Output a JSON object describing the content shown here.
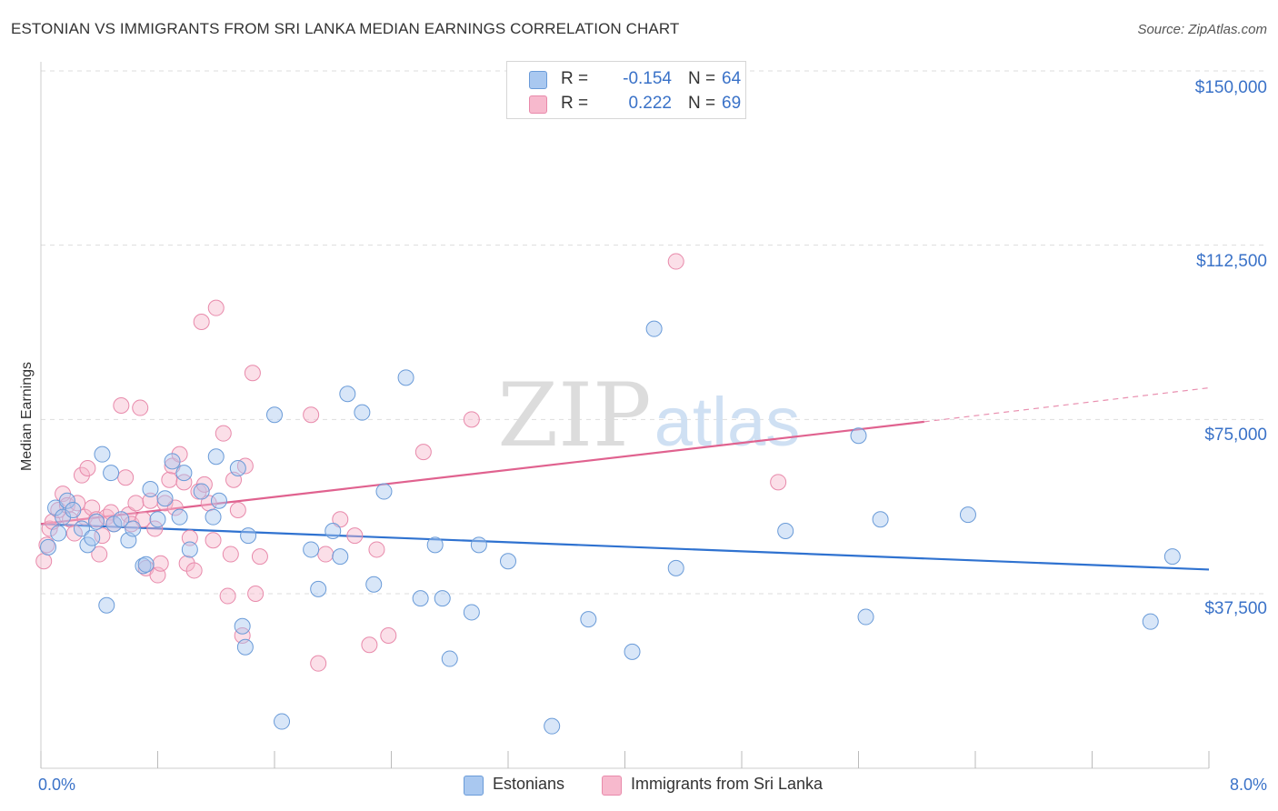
{
  "header": {
    "title": "ESTONIAN VS IMMIGRANTS FROM SRI LANKA MEDIAN EARNINGS CORRELATION CHART",
    "source": "Source: ZipAtlas.com"
  },
  "watermark": {
    "zip": "ZIP",
    "atlas": "atlas"
  },
  "legend": {
    "items": [
      {
        "r_label": "R =",
        "r_value": "-0.154",
        "n_label": "N =",
        "n_value": "64",
        "color": "#a9c8f0"
      },
      {
        "r_label": "R =",
        "r_value": "0.222",
        "n_label": "N =",
        "n_value": "69",
        "color": "#f7b9cd"
      }
    ]
  },
  "bottom_legend": {
    "estonians": "Estonians",
    "sri_lanka": "Immigrants from Sri Lanka"
  },
  "colors": {
    "blue_fill": "#a9c8f0",
    "blue_stroke": "#6a9bd8",
    "blue_line": "#2f72d0",
    "pink_fill": "#f7b9cd",
    "pink_stroke": "#e88aab",
    "pink_line": "#e0628f",
    "tick_text": "#3a72c8",
    "grid": "#dddddd"
  },
  "chart_data": {
    "type": "scatter",
    "title": "ESTONIAN VS IMMIGRANTS FROM SRI LANKA MEDIAN EARNINGS CORRELATION CHART",
    "xlabel": "",
    "ylabel": "Median Earnings",
    "xlim": [
      0,
      8
    ],
    "ylim": [
      0,
      157500
    ],
    "x_tick_labels": [
      "0.0%",
      "8.0%"
    ],
    "y_ticks": [
      37500,
      75000,
      112500,
      150000
    ],
    "y_tick_labels": [
      "$37,500",
      "$75,000",
      "$112,500",
      "$150,000"
    ],
    "grid": true,
    "series": [
      {
        "name": "Estonians",
        "r": -0.154,
        "n": 64,
        "trend": {
          "x": [
            0,
            8
          ],
          "y": [
            52500,
            42700
          ]
        },
        "points": [
          [
            0.05,
            47500
          ],
          [
            0.1,
            56000
          ],
          [
            0.15,
            54000
          ],
          [
            0.18,
            57500
          ],
          [
            0.22,
            55500
          ],
          [
            0.28,
            51500
          ],
          [
            0.32,
            48000
          ],
          [
            0.35,
            49500
          ],
          [
            0.38,
            53000
          ],
          [
            0.42,
            67500
          ],
          [
            0.48,
            63500
          ],
          [
            0.5,
            52500
          ],
          [
            0.55,
            53500
          ],
          [
            0.6,
            49000
          ],
          [
            0.63,
            51500
          ],
          [
            0.7,
            43500
          ],
          [
            0.75,
            60000
          ],
          [
            0.8,
            53500
          ],
          [
            0.85,
            58000
          ],
          [
            0.9,
            66000
          ],
          [
            0.95,
            54000
          ],
          [
            0.98,
            63500
          ],
          [
            1.02,
            47000
          ],
          [
            1.1,
            59500
          ],
          [
            1.18,
            54000
          ],
          [
            1.2,
            67000
          ],
          [
            1.22,
            57500
          ],
          [
            1.35,
            64500
          ],
          [
            1.38,
            30500
          ],
          [
            1.42,
            50000
          ],
          [
            1.6,
            76000
          ],
          [
            1.85,
            47000
          ],
          [
            1.9,
            38500
          ],
          [
            2.0,
            51000
          ],
          [
            2.05,
            45500
          ],
          [
            2.1,
            80500
          ],
          [
            2.2,
            76500
          ],
          [
            2.28,
            39500
          ],
          [
            2.35,
            59500
          ],
          [
            2.5,
            84000
          ],
          [
            2.6,
            36500
          ],
          [
            2.7,
            48000
          ],
          [
            2.75,
            36500
          ],
          [
            2.8,
            23500
          ],
          [
            2.95,
            33500
          ],
          [
            3.0,
            48000
          ],
          [
            3.2,
            44500
          ],
          [
            3.5,
            9000
          ],
          [
            3.75,
            32000
          ],
          [
            4.05,
            25000
          ],
          [
            4.2,
            94500
          ],
          [
            4.35,
            43000
          ],
          [
            5.1,
            51000
          ],
          [
            5.6,
            71500
          ],
          [
            5.65,
            32500
          ],
          [
            5.75,
            53500
          ],
          [
            6.35,
            54500
          ],
          [
            7.6,
            31500
          ],
          [
            7.75,
            45500
          ],
          [
            0.72,
            43800
          ],
          [
            0.12,
            50500
          ],
          [
            0.45,
            35000
          ],
          [
            1.65,
            10000
          ],
          [
            1.4,
            26000
          ]
        ]
      },
      {
        "name": "Immigrants from Sri Lanka",
        "r": 0.222,
        "n": 69,
        "trend": {
          "x": [
            0,
            6.05
          ],
          "y": [
            52500,
            74500
          ]
        },
        "trend_dashed": {
          "x": [
            6.05,
            8
          ],
          "y": [
            74500,
            81800
          ]
        },
        "points": [
          [
            0.02,
            44500
          ],
          [
            0.04,
            48000
          ],
          [
            0.06,
            51500
          ],
          [
            0.08,
            53000
          ],
          [
            0.12,
            55500
          ],
          [
            0.15,
            59000
          ],
          [
            0.18,
            56500
          ],
          [
            0.2,
            53500
          ],
          [
            0.23,
            50500
          ],
          [
            0.25,
            57000
          ],
          [
            0.28,
            63000
          ],
          [
            0.3,
            54000
          ],
          [
            0.32,
            64500
          ],
          [
            0.35,
            56000
          ],
          [
            0.38,
            53500
          ],
          [
            0.4,
            46000
          ],
          [
            0.42,
            50000
          ],
          [
            0.45,
            54000
          ],
          [
            0.48,
            55000
          ],
          [
            0.5,
            52500
          ],
          [
            0.55,
            78000
          ],
          [
            0.58,
            62500
          ],
          [
            0.6,
            54500
          ],
          [
            0.62,
            52500
          ],
          [
            0.65,
            57000
          ],
          [
            0.68,
            77500
          ],
          [
            0.7,
            53500
          ],
          [
            0.72,
            43000
          ],
          [
            0.75,
            57500
          ],
          [
            0.78,
            51500
          ],
          [
            0.8,
            41500
          ],
          [
            0.82,
            44000
          ],
          [
            0.85,
            57000
          ],
          [
            0.88,
            62000
          ],
          [
            0.9,
            65000
          ],
          [
            0.92,
            56000
          ],
          [
            0.95,
            67500
          ],
          [
            0.98,
            61500
          ],
          [
            1.0,
            44000
          ],
          [
            1.02,
            49500
          ],
          [
            1.05,
            42500
          ],
          [
            1.08,
            59500
          ],
          [
            1.1,
            96000
          ],
          [
            1.12,
            61000
          ],
          [
            1.15,
            57000
          ],
          [
            1.18,
            49000
          ],
          [
            1.2,
            99000
          ],
          [
            1.25,
            72000
          ],
          [
            1.28,
            37000
          ],
          [
            1.3,
            46000
          ],
          [
            1.32,
            62000
          ],
          [
            1.35,
            55500
          ],
          [
            1.38,
            28500
          ],
          [
            1.4,
            65000
          ],
          [
            1.45,
            85000
          ],
          [
            1.5,
            45500
          ],
          [
            1.85,
            76000
          ],
          [
            1.9,
            22500
          ],
          [
            1.95,
            46000
          ],
          [
            2.05,
            53500
          ],
          [
            2.15,
            50000
          ],
          [
            2.25,
            26500
          ],
          [
            2.3,
            47000
          ],
          [
            2.38,
            28500
          ],
          [
            2.62,
            68000
          ],
          [
            2.95,
            75000
          ],
          [
            4.35,
            109000
          ],
          [
            5.05,
            61500
          ],
          [
            1.47,
            37500
          ]
        ]
      }
    ]
  }
}
